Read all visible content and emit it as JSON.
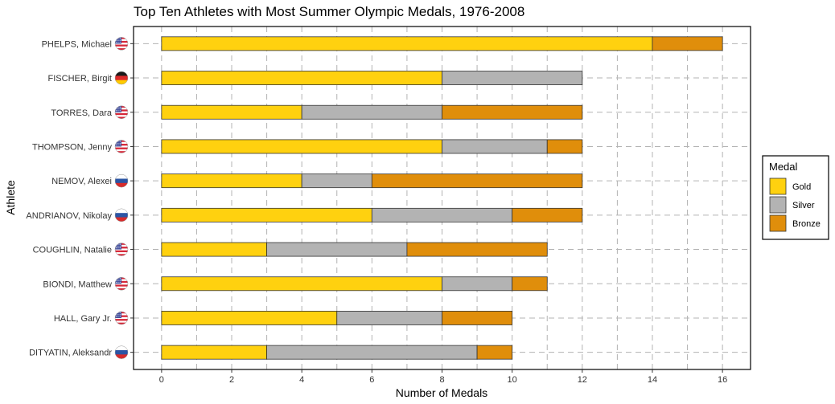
{
  "colors": {
    "Gold": "#FFD10F",
    "Silver": "#B3B3B3",
    "Bronze": "#E08E0B",
    "bar_outline": "#333333",
    "grid": "#b3b3b3"
  },
  "chart_data": {
    "type": "bar",
    "orientation": "horizontal",
    "stacked": true,
    "title": "Top Ten Athletes with Most Summer Olympic Medals, 1976-2008",
    "xlabel": "Number of Medals",
    "ylabel": "Athlete",
    "xlim": [
      -0.8,
      16.8
    ],
    "xticks": [
      0,
      2,
      4,
      6,
      8,
      10,
      12,
      14,
      16
    ],
    "grid": true,
    "categories": [
      "PHELPS, Michael",
      "FISCHER, Birgit",
      "TORRES, Dara",
      "THOMPSON, Jenny",
      "NEMOV, Alexei",
      "ANDRIANOV, Nikolay",
      "COUGHLIN, Natalie",
      "BIONDI, Matthew",
      "HALL, Gary Jr.",
      "DITYATIN, Aleksandr"
    ],
    "flags": [
      "usa-flag-icon",
      "germany-flag-icon",
      "usa-flag-icon",
      "usa-flag-icon",
      "russia-flag-icon",
      "russia-flag-icon",
      "usa-flag-icon",
      "usa-flag-icon",
      "usa-flag-icon",
      "russia-flag-icon"
    ],
    "series": [
      {
        "name": "Gold",
        "values": [
          14,
          8,
          4,
          8,
          4,
          6,
          3,
          8,
          5,
          3
        ]
      },
      {
        "name": "Silver",
        "values": [
          0,
          4,
          4,
          3,
          2,
          4,
          4,
          2,
          3,
          6
        ]
      },
      {
        "name": "Bronze",
        "values": [
          2,
          0,
          4,
          1,
          6,
          2,
          4,
          1,
          2,
          1
        ]
      }
    ],
    "legend": {
      "title": "Medal",
      "position": "right"
    }
  }
}
